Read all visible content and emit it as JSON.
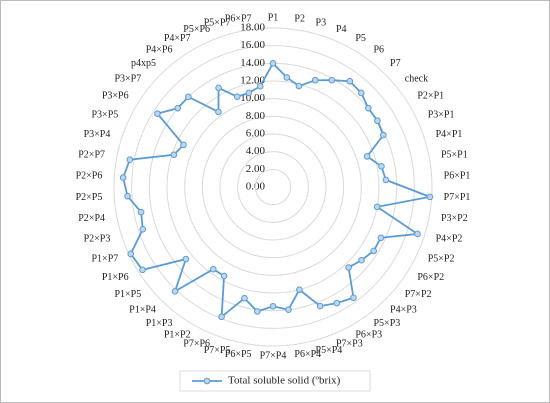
{
  "chart_data": {
    "type": "radar",
    "categories": [
      "P1",
      "P2",
      "P3",
      "P4",
      "P5",
      "P6",
      "P7",
      "check",
      "P2×P1",
      "P3×P1",
      "P4×P1",
      "P5×P1",
      "P6×P1",
      "P7×P1",
      "P3×P2",
      "P4×P2",
      "P5×P2",
      "P6×P2",
      "P7×P2",
      "P4×P3",
      "P5×P3",
      "P6×P3",
      "P7×P3",
      "P5×P4",
      "P6×P4",
      "P7×P4",
      "P6×P5",
      "P7×P5",
      "P7×P6",
      "P1×P2",
      "P1×P3",
      "P1×P4",
      "P1×P5",
      "P1×P6",
      "P1×P7",
      "P2×P3",
      "P2×P4",
      "P2×P5",
      "P2×P6",
      "P2×P7",
      "P3×P4",
      "P3×P5",
      "P3×P6",
      "P3×P7",
      "p4xp5",
      "P4×P6",
      "P4×P7",
      "P5×P6",
      "P5×P7",
      "P6×P7"
    ],
    "series": [
      {
        "name": "Total soluble solid (ºbrix)",
        "color": "#5b9bd5",
        "values": [
          14,
          12.5,
          11.8,
          13,
          13.8,
          14.8,
          14.6,
          14,
          14,
          13.8,
          11.2,
          12.5,
          12.8,
          17.8,
          12,
          17.2,
          13.5,
          13.5,
          13,
          12.5,
          15.5,
          15,
          14.5,
          12,
          14,
          13.5,
          14.2,
          13,
          15.8,
          11.5,
          11.5,
          16.2,
          12.8,
          17.5,
          17.8,
          15.5,
          15.2,
          16.5,
          17,
          16.5,
          11.8,
          11.2,
          15.5,
          14,
          14,
          10.5,
          12.8,
          11,
          11,
          11.5
        ]
      }
    ],
    "ylim": [
      0,
      18
    ],
    "yticks": [
      {
        "value": 0,
        "label": "0.00"
      },
      {
        "value": 2,
        "label": "2.00"
      },
      {
        "value": 4,
        "label": "4.00"
      },
      {
        "value": 6,
        "label": "6.00"
      },
      {
        "value": 8,
        "label": "8.00"
      },
      {
        "value": 10,
        "label": "10.00"
      },
      {
        "value": 12,
        "label": "12.00"
      },
      {
        "value": 14,
        "label": "14.00"
      },
      {
        "value": 16,
        "label": "16.00"
      },
      {
        "value": 18,
        "label": "18.00"
      }
    ],
    "grid": true,
    "legend": "bottom"
  }
}
